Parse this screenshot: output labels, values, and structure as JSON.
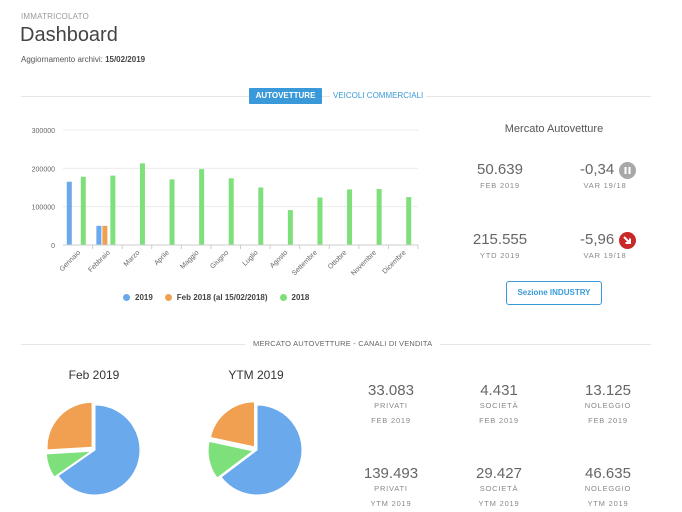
{
  "header": {
    "section_label": "IMMATRICOLATO",
    "title": "Dashboard",
    "update_label": "Aggiornamento archivi:",
    "update_date": "15/02/2019"
  },
  "tabs": {
    "active": "AUTOVETTURE",
    "inactive": "VEICOLI COMMERCIALI"
  },
  "colors": {
    "accent": "#3a9ad9",
    "series_2019": "#6aa9ec",
    "series_feb2018": "#f0a050",
    "series_2018": "#7ee07a",
    "badge_gray": "#999999",
    "badge_red": "#d03030"
  },
  "chart_data": {
    "type": "bar",
    "categories": [
      "Gennaio",
      "Febbraio",
      "Marzo",
      "Aprile",
      "Maggio",
      "Giugno",
      "Luglio",
      "Agosto",
      "Settembre",
      "Ottobre",
      "Novembre",
      "Dicembre"
    ],
    "yticks": [
      "0",
      "100000",
      "200000",
      "300000"
    ],
    "ylim": [
      0,
      300000
    ],
    "grid": true,
    "legend_position": "bottom",
    "series": [
      {
        "name": "2019",
        "color": "#6aa9ec",
        "values": [
          165000,
          50000,
          null,
          null,
          null,
          null,
          null,
          null,
          null,
          null,
          null,
          null
        ]
      },
      {
        "name": "Feb 2018 (al 15/02/2018)",
        "color": "#f0a050",
        "values": [
          null,
          50000,
          null,
          null,
          null,
          null,
          null,
          null,
          null,
          null,
          null,
          null
        ]
      },
      {
        "name": "2018",
        "color": "#7ee07a",
        "values": [
          178000,
          181000,
          213000,
          171000,
          198000,
          174000,
          150000,
          91000,
          124000,
          145000,
          146000,
          125000
        ]
      }
    ]
  },
  "market": {
    "title": "Mercato Autovetture",
    "feb_value": "50.639",
    "feb_label": "FEB 2019",
    "feb_var": "-0,34",
    "feb_var_label": "VAR 19/18",
    "feb_icon": "pause-icon",
    "ytd_value": "215.555",
    "ytd_label": "YTD 2019",
    "ytd_var": "-5,96",
    "ytd_var_label": "VAR 19/18",
    "ytd_icon": "arrow-down-right-icon",
    "industry_button": "Sezione INDUSTRY"
  },
  "channels": {
    "section_title": "MERCATO AUTOVETTURE - CANALI DI VENDITA",
    "pie1_title": "Feb 2019",
    "pie2_title": "YTM 2019",
    "pie1": [
      {
        "name": "Privati",
        "value": 33083,
        "color": "#6aa9ec"
      },
      {
        "name": "Società",
        "value": 4431,
        "color": "#7ee07a"
      },
      {
        "name": "Noleggio",
        "value": 13125,
        "color": "#f0a050"
      }
    ],
    "pie2": [
      {
        "name": "Privati",
        "value": 139493,
        "color": "#6aa9ec"
      },
      {
        "name": "Società",
        "value": 29427,
        "color": "#7ee07a"
      },
      {
        "name": "Noleggio",
        "value": 46635,
        "color": "#f0a050"
      }
    ],
    "stats": [
      {
        "value": "33.083",
        "label": "PRIVATI",
        "period": "FEB 2019"
      },
      {
        "value": "4.431",
        "label": "SOCIETÀ",
        "period": "FEB 2019"
      },
      {
        "value": "13.125",
        "label": "NOLEGGIO",
        "period": "FEB 2019"
      },
      {
        "value": "139.493",
        "label": "PRIVATI",
        "period": "YTM 2019"
      },
      {
        "value": "29.427",
        "label": "SOCIETÀ",
        "period": "YTM 2019"
      },
      {
        "value": "46.635",
        "label": "NOLEGGIO",
        "period": "YTM 2019"
      }
    ]
  }
}
